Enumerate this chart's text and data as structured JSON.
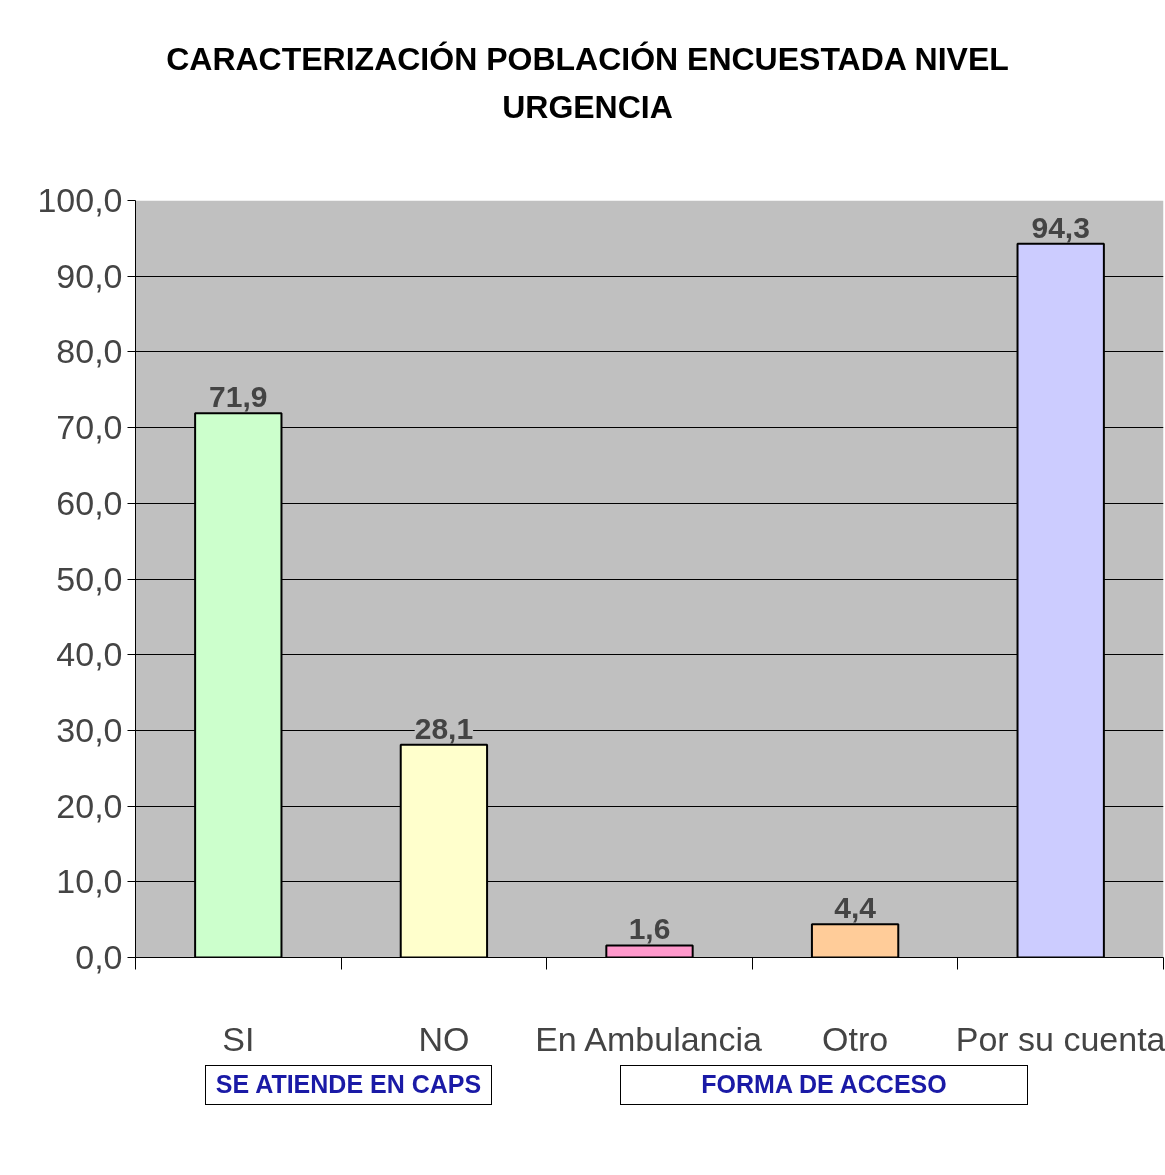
{
  "chart_data": {
    "type": "bar",
    "title": "CARACTERIZACIÓN POBLACIÓN ENCUESTADA NIVEL URGENCIA",
    "categories": [
      "SI",
      "NO",
      "En Ambulancia",
      "Otro",
      "Por su cuenta"
    ],
    "values": [
      71.9,
      28.1,
      1.6,
      4.4,
      94.3
    ],
    "colors": [
      "#ccffcc",
      "#ffffcc",
      "#ff99cc",
      "#ffcc99",
      "#ccccff"
    ],
    "ylim": [
      0,
      100
    ],
    "yticks": [
      {
        "value": 0,
        "label": "0,0"
      },
      {
        "value": 10,
        "label": "10,0"
      },
      {
        "value": 20,
        "label": "20,0"
      },
      {
        "value": 30,
        "label": "30,0"
      },
      {
        "value": 40,
        "label": "40,0"
      },
      {
        "value": 50,
        "label": "50,0"
      },
      {
        "value": 60,
        "label": "60,0"
      },
      {
        "value": 70,
        "label": "70,0"
      },
      {
        "value": 80,
        "label": "80,0"
      },
      {
        "value": 90,
        "label": "90,0"
      },
      {
        "value": 100,
        "label": "100,0"
      }
    ],
    "value_labels": [
      "71,9",
      "28,1",
      "1,6",
      "4,4",
      "94,3"
    ],
    "annotations": [
      "SE ATIENDE EN CAPS",
      "FORMA DE ACCESO"
    ],
    "grid": "y"
  }
}
